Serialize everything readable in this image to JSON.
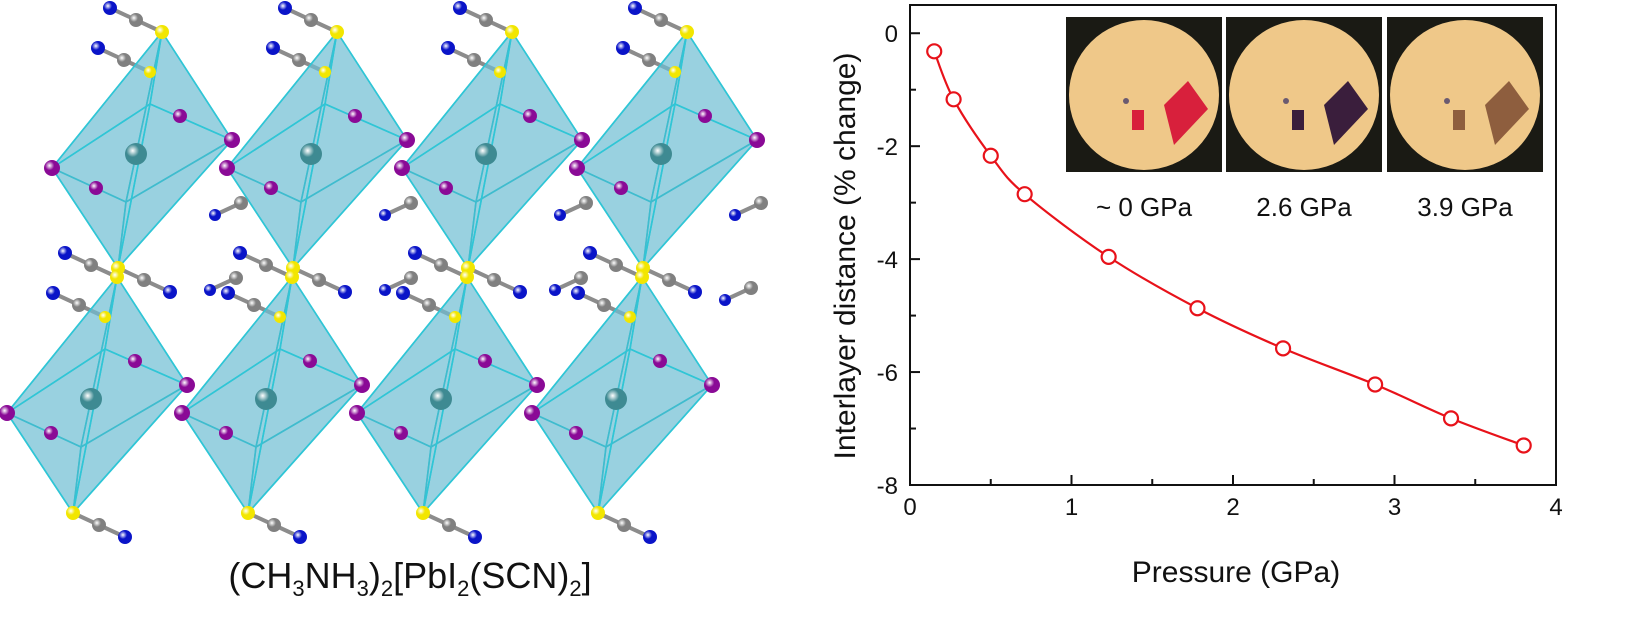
{
  "left_panel": {
    "formula": {
      "p1": "(CH",
      "s1": "3",
      "p2": "NH",
      "s2": "3",
      "p3": ")",
      "s3": "2",
      "p4": "[PbI",
      "s4": "2",
      "p5": "(SCN)",
      "s5": "2",
      "p6": "]"
    },
    "colors": {
      "octahedron": "#7fd3e6",
      "edge": "#2fc6d6",
      "iodine": "#8a0a96",
      "sulfur": "#f2e600",
      "carbon": "#808080",
      "nitrogen": "#0a14c8",
      "lead": "#3e8a92"
    }
  },
  "inset": {
    "labels": [
      "~ 0 GPa",
      "2.6 GPa",
      "3.9 GPa"
    ],
    "colors": {
      "background": "#1a1a14",
      "disc": "#efc889",
      "crystal_0": "#d8203c",
      "crystal_1": "#3a1e3c",
      "crystal_2": "#8e5e3e"
    }
  },
  "chart_data": {
    "type": "line",
    "x": [
      0.15,
      0.27,
      0.5,
      0.71,
      1.23,
      1.78,
      2.31,
      2.88,
      3.35,
      3.8
    ],
    "series": [
      {
        "values": [
          -0.32,
          -1.17,
          -2.17,
          -2.85,
          -3.96,
          -4.87,
          -5.58,
          -6.22,
          -6.82,
          -7.3
        ]
      }
    ],
    "xlabel": "Pressure (GPa)",
    "ylabel": "Interlayer distance (% change)",
    "xlim": [
      0,
      4
    ],
    "ylim": [
      -8,
      0.5
    ],
    "xticks": [
      0,
      1,
      2,
      3,
      4
    ],
    "yticks": [
      0,
      -2,
      -4,
      -6,
      -8
    ],
    "xtick_labels": [
      "0",
      "1",
      "2",
      "3",
      "4"
    ],
    "ytick_labels": [
      "0",
      "-2",
      "-4",
      "-6",
      "-8"
    ],
    "grid": false,
    "line_color": "#e8121a",
    "marker": "open-circle"
  }
}
